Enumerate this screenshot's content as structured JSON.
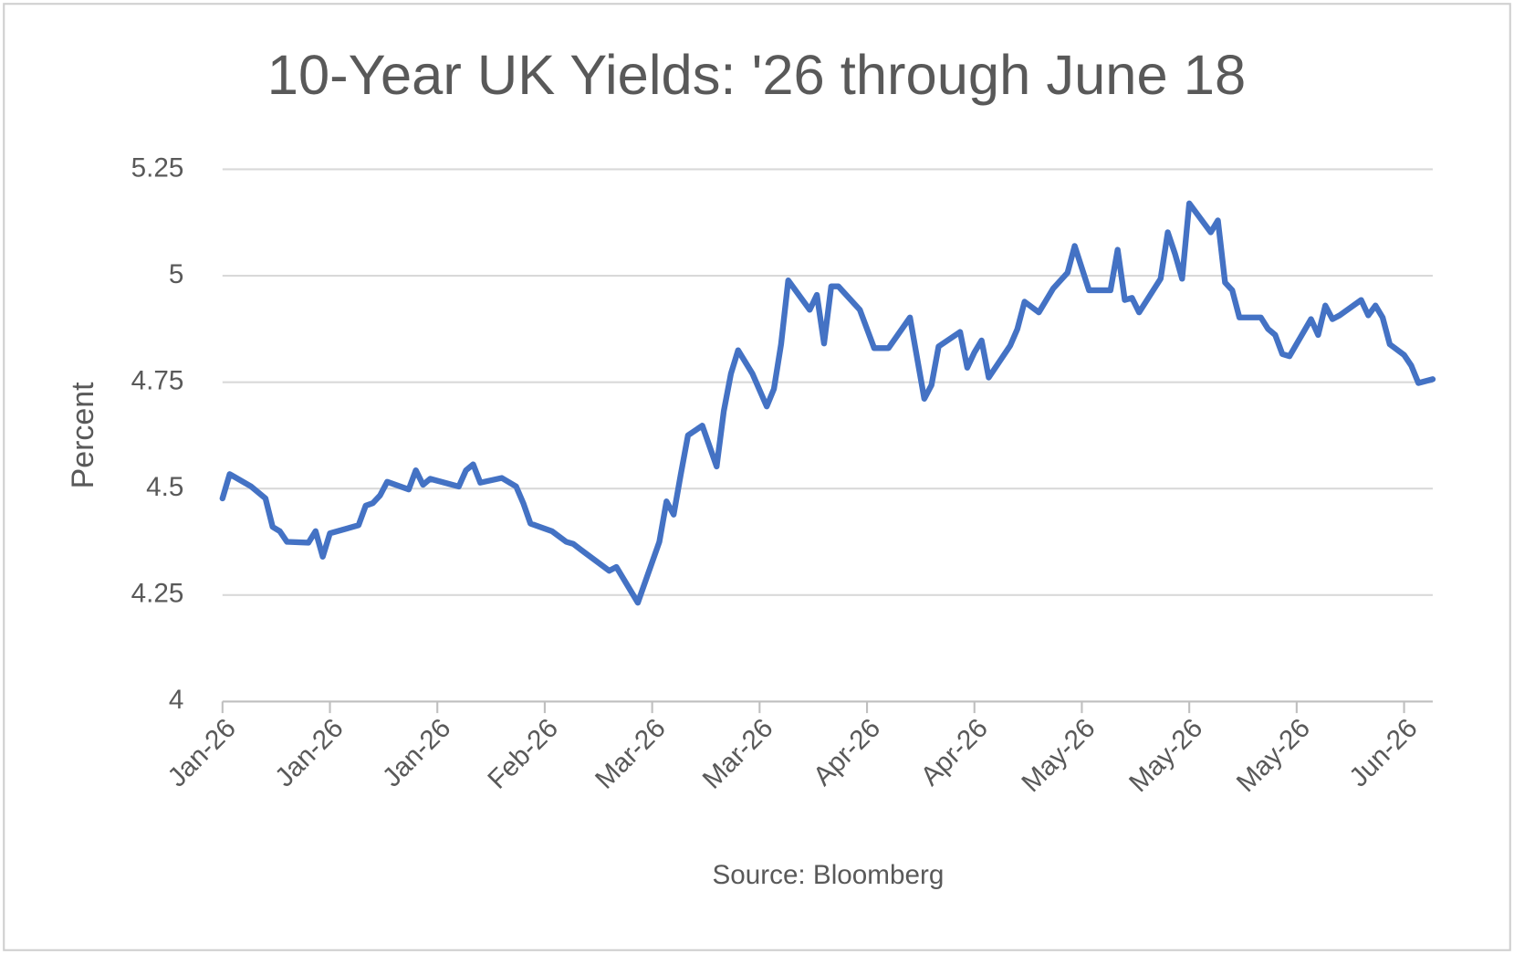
{
  "chart_data": {
    "type": "line",
    "title": "10-Year UK Yields: '26 through June 18",
    "y_label": "Percent",
    "source": "Source: Bloomberg",
    "x": [
      0,
      1,
      4,
      6,
      7,
      8,
      9,
      12,
      13,
      14,
      15,
      19,
      20,
      21,
      22,
      23,
      26,
      27,
      28,
      29,
      33,
      34,
      35,
      36,
      39,
      41,
      42,
      43,
      46,
      48,
      49,
      50,
      54,
      55,
      58,
      61,
      62,
      63,
      64,
      65,
      67,
      69,
      70,
      71,
      72,
      74,
      76,
      77,
      78,
      79,
      82,
      83,
      84,
      85,
      86,
      89,
      91,
      93,
      96,
      98,
      99,
      100,
      103,
      104,
      105,
      106,
      107,
      110,
      111,
      112,
      114,
      116,
      118,
      119,
      121,
      124,
      125,
      126,
      127,
      128,
      131,
      132,
      133,
      134,
      135,
      138,
      139,
      140,
      141,
      142,
      145,
      146,
      147,
      148,
      149,
      152,
      153,
      154,
      155,
      156,
      159,
      160,
      161,
      162,
      163,
      165,
      166,
      167,
      169
    ],
    "series": [
      {
        "name": "10-Year UK Yield",
        "color": "#4472c4",
        "values": [
          4.477,
          4.534,
          4.505,
          4.477,
          4.41,
          4.4,
          4.375,
          4.373,
          4.4,
          4.34,
          4.395,
          4.414,
          4.46,
          4.466,
          4.484,
          4.516,
          4.498,
          4.543,
          4.509,
          4.523,
          4.505,
          4.543,
          4.557,
          4.514,
          4.525,
          4.505,
          4.466,
          4.418,
          4.4,
          4.375,
          4.37,
          4.357,
          4.307,
          4.316,
          4.232,
          4.375,
          4.47,
          4.439,
          4.534,
          4.625,
          4.648,
          4.552,
          4.682,
          4.77,
          4.825,
          4.77,
          4.693,
          4.734,
          4.839,
          4.989,
          4.92,
          4.955,
          4.841,
          4.975,
          4.975,
          4.92,
          4.83,
          4.83,
          4.902,
          4.711,
          4.743,
          4.834,
          4.868,
          4.784,
          4.82,
          4.848,
          4.761,
          4.836,
          4.875,
          4.939,
          4.914,
          4.97,
          5.007,
          5.07,
          4.966,
          4.966,
          5.061,
          4.943,
          4.948,
          4.914,
          4.993,
          5.102,
          5.052,
          4.993,
          5.17,
          5.102,
          5.13,
          4.984,
          4.966,
          4.902,
          4.902,
          4.875,
          4.861,
          4.816,
          4.811,
          4.898,
          4.861,
          4.93,
          4.898,
          4.907,
          4.943,
          4.907,
          4.93,
          4.902,
          4.839,
          4.814,
          4.789,
          4.748,
          4.757
        ]
      }
    ],
    "xlim": [
      0,
      169
    ],
    "xticks": [
      {
        "value": 0,
        "label": "Jan-26"
      },
      {
        "value": 15,
        "label": "Jan-26"
      },
      {
        "value": 30,
        "label": "Jan-26"
      },
      {
        "value": 45,
        "label": "Feb-26"
      },
      {
        "value": 60,
        "label": "Mar-26"
      },
      {
        "value": 75,
        "label": "Mar-26"
      },
      {
        "value": 90,
        "label": "Apr-26"
      },
      {
        "value": 105,
        "label": "Apr-26"
      },
      {
        "value": 120,
        "label": "May-26"
      },
      {
        "value": 135,
        "label": "May-26"
      },
      {
        "value": 150,
        "label": "May-26"
      },
      {
        "value": 165,
        "label": "Jun-26"
      }
    ],
    "ylim": [
      4,
      5.25
    ],
    "yticks": [
      4,
      4.25,
      4.5,
      4.75,
      5,
      5.25
    ],
    "grid": true
  }
}
